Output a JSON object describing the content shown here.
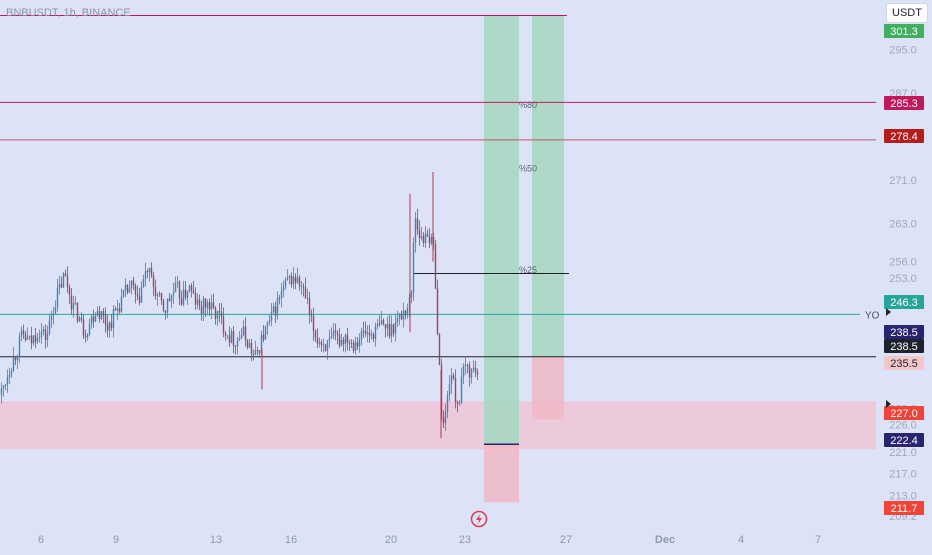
{
  "header": {
    "symbol": "BNBUSDT, 1h, BINANCE",
    "currency_button": "USDT"
  },
  "colors": {
    "background": "#dce3f7",
    "candle_up": "#2a8bc7",
    "candle_down": "#b53a4e",
    "tp_zone": "#a9d6c2",
    "sl_zone": "#f0b9c6",
    "support_zone": "#efc2d1"
  },
  "chart_data": {
    "type": "candlestick",
    "x_labels": [
      "6",
      "9",
      "13",
      "16",
      "20",
      "23",
      "27",
      "Dec",
      "4",
      "7"
    ],
    "y_ticks": [
      295.0,
      287.0,
      271.0,
      263.0,
      256.0,
      253.0,
      229.0,
      226.0,
      221.0,
      217.0,
      213.0,
      209.2
    ],
    "ylim": [
      207.9,
      303.6
    ],
    "price_badges": [
      {
        "value": "301.3",
        "bg": "#3fae5f",
        "fg": "#ffffff"
      },
      {
        "value": "285.3",
        "bg": "#c2185b",
        "fg": "#ffffff"
      },
      {
        "value": "278.4",
        "bg": "#b71c1c",
        "fg": "#ffffff"
      },
      {
        "value": "246.3",
        "bg": "#26a69a",
        "fg": "#ffffff"
      },
      {
        "value": "238.5",
        "bg": "#2a2370",
        "fg": "#ffffff"
      },
      {
        "value": "238.5",
        "bg": "#1e222d",
        "fg": "#ffffff"
      },
      {
        "value": "235.5",
        "bg": "#f3c7c7",
        "fg": "#1e222d"
      },
      {
        "value": "227.0",
        "bg": "#f44336",
        "fg": "#ffffff"
      },
      {
        "value": "222.4",
        "bg": "#2a2370",
        "fg": "#ffffff"
      },
      {
        "value": "211.7",
        "bg": "#f44336",
        "fg": "#ffffff"
      }
    ],
    "horizontal_lines": [
      {
        "price": 301.3,
        "color": "#c2185b"
      },
      {
        "price": 285.3,
        "color": "#c2185b"
      },
      {
        "price": 278.4,
        "color": "#b85c5c"
      },
      {
        "price": 246.3,
        "color": "#26a69a",
        "label": "YO"
      },
      {
        "price": 238.5,
        "color": "#1e222d"
      }
    ],
    "fib_labels": [
      {
        "text": "%80",
        "price": 284.3
      },
      {
        "text": "%50",
        "price": 272.6
      },
      {
        "text": "%25",
        "price": 253.9
      }
    ],
    "zones": [
      {
        "name": "support",
        "top": 230.3,
        "bottom": 221.5
      },
      {
        "name": "tp-1",
        "top": 301.3,
        "bottom": 222.4
      },
      {
        "name": "sl-1",
        "top": 222.4,
        "bottom": 211.7
      },
      {
        "name": "tp-2",
        "top": 301.3,
        "bottom": 238.5
      },
      {
        "name": "sl-2",
        "top": 238.5,
        "bottom": 227.0
      }
    ],
    "price_path": [
      [
        0,
        231.5
      ],
      [
        3,
        233.0
      ],
      [
        8,
        236.0
      ],
      [
        15,
        239.0
      ],
      [
        22,
        242.5
      ],
      [
        30,
        241.0
      ],
      [
        38,
        243.5
      ],
      [
        46,
        242.0
      ],
      [
        52,
        247.0
      ],
      [
        58,
        250.5
      ],
      [
        64,
        253.5
      ],
      [
        68,
        251.0
      ],
      [
        72,
        248.0
      ],
      [
        78,
        246.0
      ],
      [
        84,
        243.0
      ],
      [
        90,
        245.0
      ],
      [
        96,
        247.5
      ],
      [
        102,
        246.0
      ],
      [
        108,
        244.0
      ],
      [
        114,
        246.5
      ],
      [
        120,
        248.5
      ],
      [
        126,
        250.5
      ],
      [
        132,
        251.5
      ],
      [
        137,
        248.0
      ],
      [
        142,
        252.0
      ],
      [
        147,
        254.5
      ],
      [
        152,
        252.0
      ],
      [
        158,
        249.0
      ],
      [
        164,
        247.0
      ],
      [
        170,
        249.5
      ],
      [
        176,
        251.0
      ],
      [
        182,
        249.0
      ],
      [
        188,
        251.5
      ],
      [
        194,
        249.0
      ],
      [
        200,
        247.0
      ],
      [
        206,
        248.5
      ],
      [
        212,
        247.0
      ],
      [
        218,
        246.0
      ],
      [
        224,
        244.0
      ],
      [
        230,
        242.0
      ],
      [
        236,
        241.5
      ],
      [
        242,
        243.0
      ],
      [
        248,
        241.0
      ],
      [
        254,
        238.0
      ],
      [
        258,
        240.0
      ],
      [
        264,
        243.0
      ],
      [
        270,
        245.0
      ],
      [
        276,
        248.0
      ],
      [
        282,
        250.5
      ],
      [
        288,
        252.5
      ],
      [
        294,
        253.0
      ],
      [
        300,
        251.5
      ],
      [
        306,
        249.0
      ],
      [
        310,
        245.0
      ],
      [
        316,
        242.0
      ],
      [
        322,
        241.0
      ],
      [
        328,
        240.5
      ],
      [
        334,
        242.0
      ],
      [
        340,
        241.5
      ],
      [
        346,
        242.5
      ],
      [
        352,
        241.0
      ],
      [
        358,
        242.0
      ],
      [
        364,
        243.0
      ],
      [
        370,
        242.5
      ],
      [
        376,
        243.5
      ],
      [
        382,
        244.5
      ],
      [
        388,
        243.5
      ],
      [
        394,
        244.5
      ],
      [
        400,
        246.0
      ],
      [
        404,
        247.0
      ],
      [
        408,
        248.0
      ],
      [
        411,
        250.0
      ],
      [
        414,
        265.0
      ],
      [
        418,
        262.0
      ],
      [
        422,
        259.0
      ],
      [
        426,
        262.5
      ],
      [
        430,
        259.5
      ],
      [
        434,
        258.0
      ],
      [
        436,
        247.0
      ],
      [
        439,
        236.0
      ],
      [
        442,
        225.0
      ],
      [
        446,
        229.0
      ],
      [
        450,
        236.5
      ],
      [
        454,
        232.0
      ],
      [
        458,
        229.5
      ],
      [
        462,
        235.0
      ],
      [
        466,
        237.0
      ],
      [
        470,
        235.5
      ],
      [
        474,
        236.5
      ],
      [
        478,
        235.5
      ]
    ]
  }
}
